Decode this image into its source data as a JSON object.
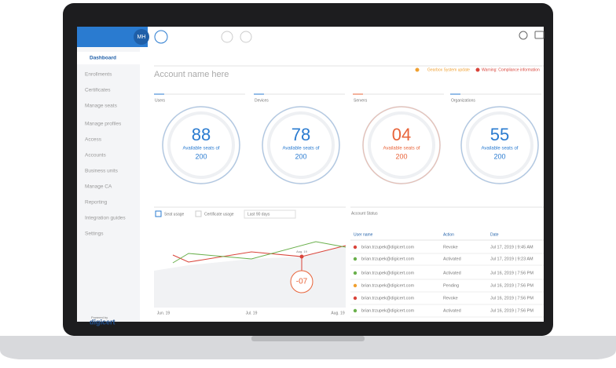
{
  "sidebar": {
    "avatar": "MH",
    "nav": [
      "Dashboard",
      "Enrollments",
      "Certificates",
      "Manage seats",
      "Manage profiles",
      "Access",
      "Accounts",
      "Business units",
      "Manage CA",
      "Reporting",
      "Integration guides",
      "Settings"
    ],
    "powered_by": "Powered by",
    "brand": "digicert"
  },
  "header": {
    "account": "Account name here",
    "notice": "Gearbox System update",
    "warning": "Warning: Compliance information"
  },
  "gauges": [
    {
      "label": "Users",
      "value": "88",
      "caption": "Available seats of",
      "total": "200",
      "color": "#2a7bd0"
    },
    {
      "label": "Devices",
      "value": "78",
      "caption": "Available seats of",
      "total": "200",
      "color": "#2a7bd0"
    },
    {
      "label": "Servers",
      "value": "04",
      "caption": "Available seats of",
      "total": "200",
      "color": "#e8643a"
    },
    {
      "label": "Organizations",
      "value": "55",
      "caption": "Available seats of",
      "total": "200",
      "color": "#2a7bd0"
    }
  ],
  "usage": {
    "seat": "Seat usage",
    "certificate": "Certificate usage",
    "range": "Last 90 days",
    "xlabels": [
      "Jun. 19",
      "Jul. 19",
      "Aug. 19"
    ],
    "callout": "-07",
    "callout_label": "Aug. 19"
  },
  "table": {
    "title": "Account Status",
    "headers": [
      "User name",
      "Action",
      "Date"
    ],
    "rows": [
      [
        "brian.trzupek@digicert.com",
        "Revoke",
        "Jul 17, 2019 | 9:45 AM"
      ],
      [
        "brian.trzupek@digicert.com",
        "Activated",
        "Jul 17, 2019 | 9:23 AM"
      ],
      [
        "brian.trzupek@digicert.com",
        "Activated",
        "Jul 16, 2019 | 7:56 PM"
      ],
      [
        "brian.trzupek@digicert.com",
        "Pending",
        "Jul 16, 2019 | 7:56 PM"
      ],
      [
        "brian.trzupek@digicert.com",
        "Revoke",
        "Jul 16, 2019 | 7:56 PM"
      ],
      [
        "brian.trzupek@digicert.com",
        "Activated",
        "Jul 16, 2019 | 7:56 PM"
      ]
    ],
    "dot_colors": [
      "#d9443a",
      "#6ab04c",
      "#6ab04c",
      "#f0a030",
      "#d9443a",
      "#6ab04c"
    ]
  }
}
